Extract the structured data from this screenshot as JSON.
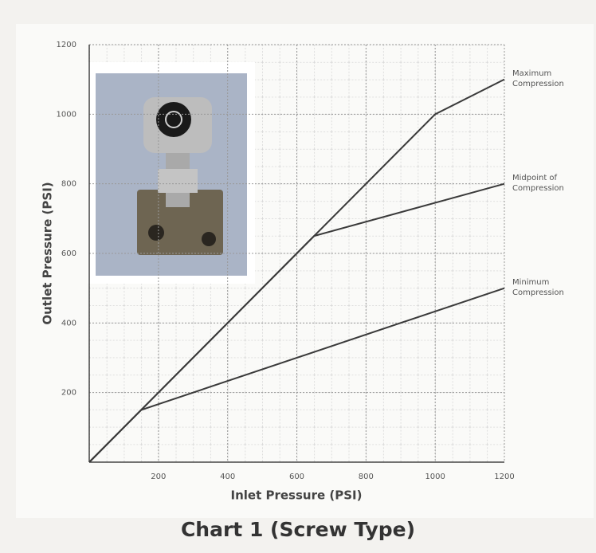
{
  "chart_data": {
    "type": "line",
    "title": "Chart 1 (Screw Type)",
    "x_label": "Inlet Pressure (PSI)",
    "y_label": "Outlet Pressure (PSI)",
    "xlim": [
      0,
      1200
    ],
    "ylim": [
      0,
      1200
    ],
    "xticks": [
      200,
      400,
      600,
      800,
      1000,
      1200
    ],
    "yticks": [
      200,
      400,
      600,
      800,
      1000,
      1200
    ],
    "grid": true,
    "series": [
      {
        "name": "Maximum Compression",
        "color": "#3a3a3a",
        "x": [
          0,
          1000,
          1200
        ],
        "values": [
          0,
          1000,
          1100
        ]
      },
      {
        "name": "Midpoint of Compression",
        "color": "#3a3a3a",
        "x": [
          0,
          650,
          1200
        ],
        "values": [
          0,
          650,
          800
        ]
      },
      {
        "name": "Minimum Compression",
        "color": "#3a3a3a",
        "x": [
          0,
          150,
          1200
        ],
        "values": [
          0,
          150,
          500
        ]
      }
    ]
  }
}
